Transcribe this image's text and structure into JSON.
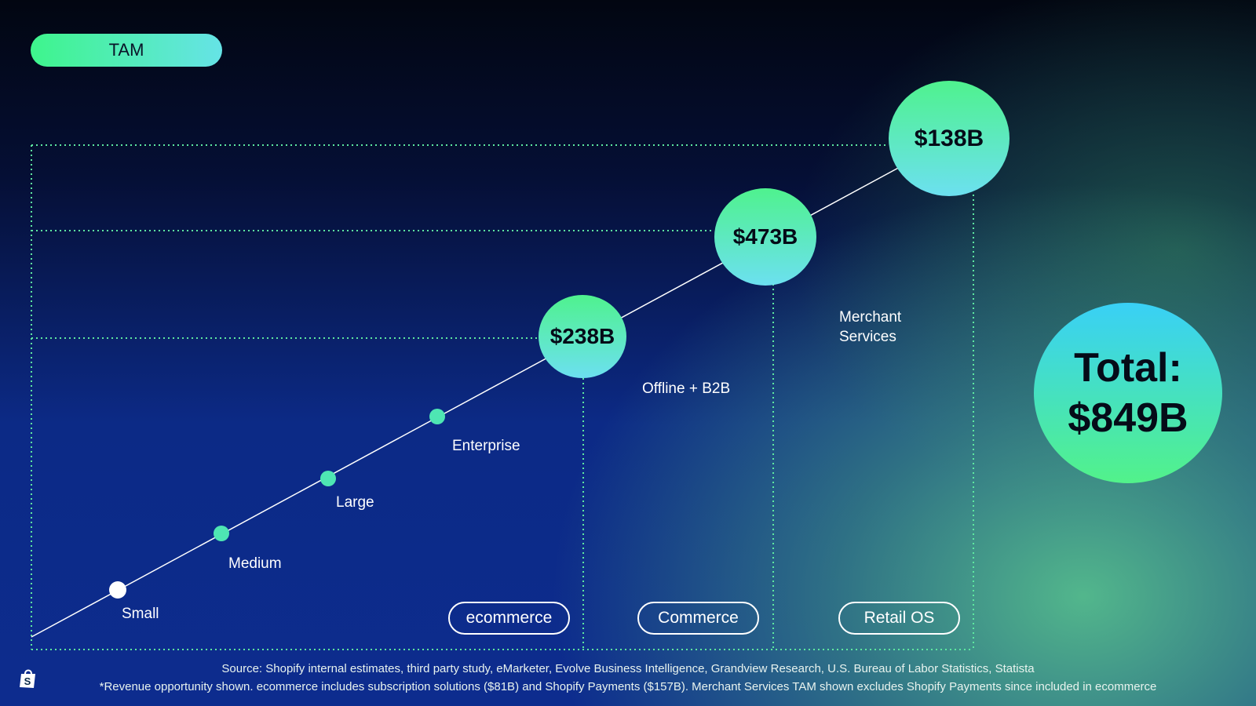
{
  "tag": {
    "label": "TAM"
  },
  "stages": [
    {
      "name": "Small"
    },
    {
      "name": "Medium"
    },
    {
      "name": "Large"
    },
    {
      "name": "Enterprise"
    }
  ],
  "bubbles": [
    {
      "value": "$238B"
    },
    {
      "value": "$473B"
    },
    {
      "value": "$138B"
    }
  ],
  "areas": [
    {
      "label": "Offline + B2B"
    },
    {
      "label_line1": "Merchant",
      "label_line2": "Services"
    }
  ],
  "segments": [
    {
      "label": "ecommerce"
    },
    {
      "label": "Commerce"
    },
    {
      "label": "Retail OS"
    }
  ],
  "total": {
    "line1": "Total:",
    "line2": "$849B"
  },
  "footer": {
    "source": "Source: Shopify internal estimates, third party study, eMarketer, Evolve Business Intelligence, Grandview Research, U.S. Bureau of Labor Statistics, Statista",
    "note": "*Revenue opportunity shown. ecommerce includes subscription solutions ($81B) and Shopify Payments ($157B). Merchant Services TAM shown excludes Shopify Payments since included in ecommerce"
  },
  "colors": {
    "accent_green": "#4ff28e",
    "accent_cyan": "#6ce0f0",
    "dotted_line": "#5ee8a0"
  },
  "icons": {
    "brand": "shopify-bag-icon"
  }
}
